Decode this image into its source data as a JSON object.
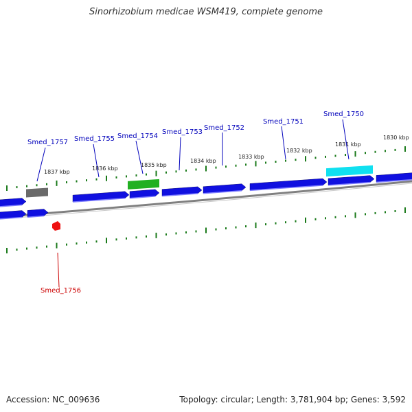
{
  "title": "Sinorhizobium medicae WSM419, complete genome",
  "footer": {
    "accession": "Accession: NC_009636",
    "topology": "Topology: circular; Length: 3,781,904 bp; Genes: 3,592"
  },
  "colors": {
    "forward_gene": "#1010e0",
    "highlight_green": "#22b022",
    "highlight_cyan": "#10e0f0",
    "highlight_grey": "#6a6a6a",
    "reverse_gene": "#ee1010",
    "backbone": "#808080",
    "tick": "#1a7a1a",
    "label_blue": "#0000bb",
    "label_red": "#cc0000"
  },
  "tick_labels": [
    "1837 kbp",
    "1836 kbp",
    "1835 kbp",
    "1834 kbp",
    "1833 kbp",
    "1832 kbp",
    "1831 kbp",
    "1830 kbp"
  ],
  "gene_labels": [
    {
      "name": "Smed_1757",
      "strand": "forward"
    },
    {
      "name": "Smed_1755",
      "strand": "forward"
    },
    {
      "name": "Smed_1754",
      "strand": "forward"
    },
    {
      "name": "Smed_1753",
      "strand": "forward"
    },
    {
      "name": "Smed_1752",
      "strand": "forward"
    },
    {
      "name": "Smed_1751",
      "strand": "forward"
    },
    {
      "name": "Smed_1750",
      "strand": "forward"
    },
    {
      "name": "Smed_1756",
      "strand": "reverse"
    }
  ]
}
